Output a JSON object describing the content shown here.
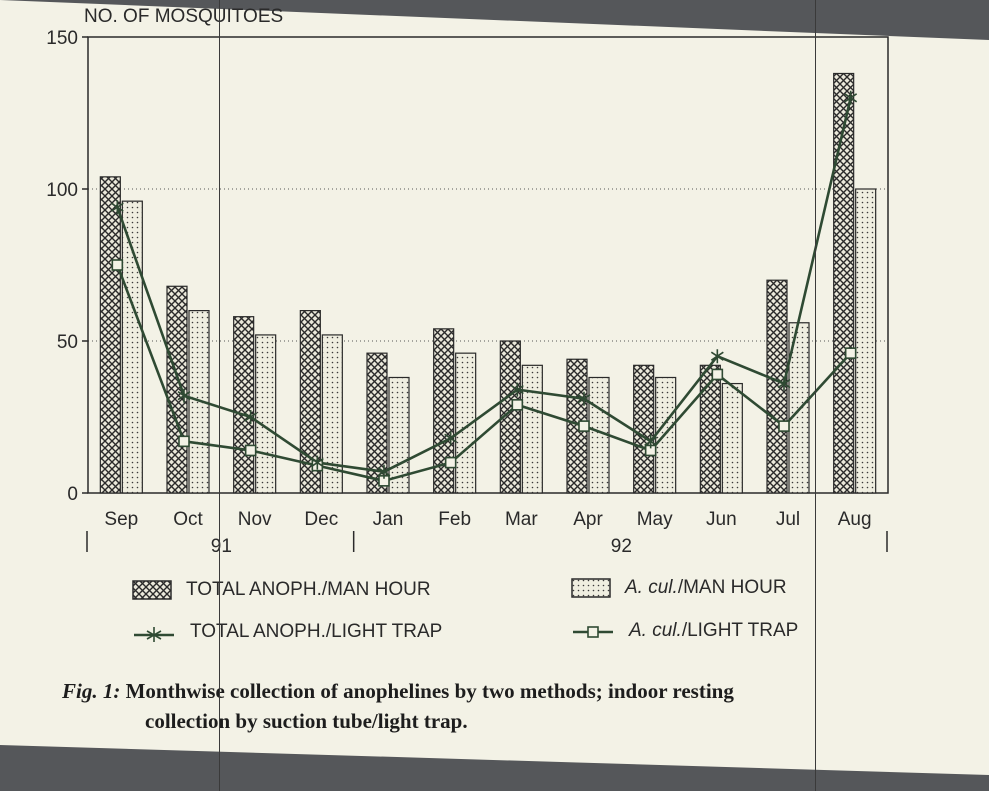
{
  "chart_data": {
    "type": "bar",
    "ylabel": "NO. OF MOSQUITOES",
    "ylim": [
      0,
      150
    ],
    "yticks": [
      0,
      50,
      100,
      150
    ],
    "grid": "dotted horizontal at 50 and 100",
    "categories": [
      "Sep",
      "Oct",
      "Nov",
      "Dec",
      "Jan",
      "Feb",
      "Mar",
      "Apr",
      "May",
      "Jun",
      "Jul",
      "Aug"
    ],
    "year_groups": [
      {
        "label": "91",
        "from": "Sep",
        "to": "Dec"
      },
      {
        "label": "92",
        "from": "Jan",
        "to": "Aug"
      }
    ],
    "series": [
      {
        "name": "TOTAL ANOPH./MAN HOUR",
        "kind": "bar",
        "pattern": "crosshatch",
        "values": [
          104,
          68,
          58,
          60,
          46,
          54,
          50,
          44,
          42,
          42,
          70,
          138
        ]
      },
      {
        "name_italic": "A. cul.",
        "name_rest": "/MAN HOUR",
        "kind": "bar",
        "pattern": "dotted",
        "values": [
          96,
          60,
          52,
          52,
          38,
          46,
          42,
          38,
          38,
          36,
          56,
          100
        ]
      },
      {
        "name": "TOTAL ANOPH./LIGHT TRAP",
        "kind": "line",
        "marker": "asterisk",
        "values": [
          94,
          32,
          25,
          10,
          7,
          18,
          34,
          31,
          17,
          45,
          36,
          130
        ]
      },
      {
        "name_italic": "A. cul.",
        "name_rest": "/LIGHT TRAP",
        "kind": "line",
        "marker": "square",
        "values": [
          75,
          17,
          14,
          9,
          4,
          10,
          29,
          22,
          14,
          39,
          22,
          46
        ]
      }
    ],
    "legend": "below chart, two columns"
  },
  "caption": {
    "fig_label": "Fig. 1:",
    "line1": "Monthwise collection of anophelines by two methods; indoor resting",
    "line2": "collection by suction tube/light trap."
  },
  "colors": {
    "paper": "#f3f2e6",
    "ink": "#2a2a2a",
    "line_series": "#2f4a33",
    "scanner_bg": "#55575a"
  }
}
